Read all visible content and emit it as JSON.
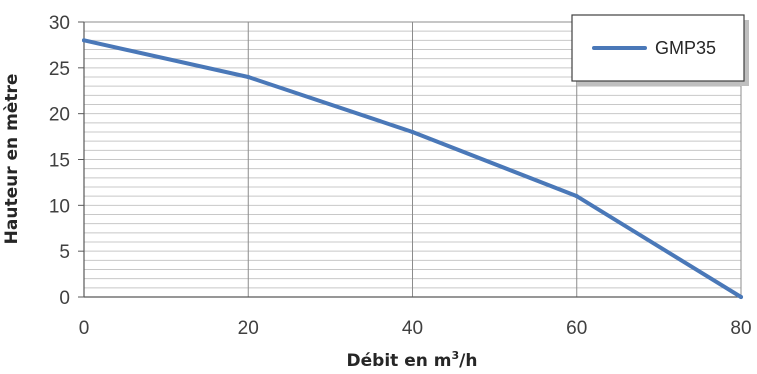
{
  "chart_data": {
    "type": "line",
    "x": [
      0,
      20,
      40,
      60,
      80
    ],
    "series": [
      {
        "name": "GMP35",
        "values": [
          28,
          24,
          18,
          11,
          0
        ],
        "color": "#4a78b8"
      }
    ],
    "xlabel_main": "Débit en m",
    "xlabel_sup": "3",
    "xlabel_end": "/h",
    "ylabel": "Hauteur en mètre",
    "xlim": [
      0,
      80
    ],
    "ylim": [
      0,
      30
    ],
    "xticks": [
      "0",
      "20",
      "40",
      "60",
      "80"
    ],
    "yticks": [
      "0",
      "5",
      "10",
      "15",
      "20",
      "25",
      "30"
    ],
    "major_x_grid": [
      0,
      20,
      40,
      60,
      80
    ],
    "minor_y_step": 1,
    "grid": true,
    "legend_position": "top-right"
  }
}
